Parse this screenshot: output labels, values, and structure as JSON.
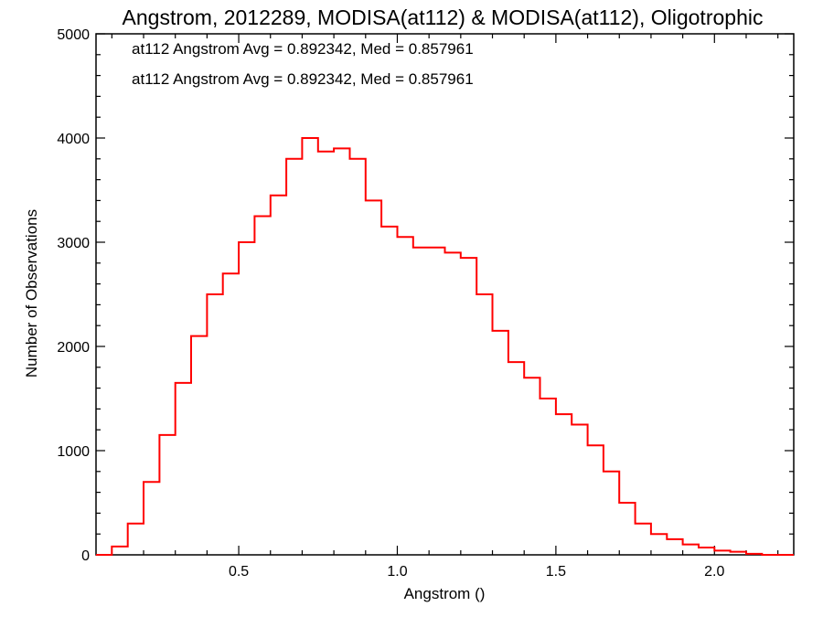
{
  "chart_data": {
    "type": "step",
    "title": "Angstrom, 2012289, MODISA(at112) & MODISA(at112), Oligotrophic",
    "xlabel": "Angstrom ()",
    "ylabel": "Number of Observations",
    "xlim": [
      0.05,
      2.25
    ],
    "ylim": [
      0,
      5000
    ],
    "x_ticks": [
      0.5,
      1.0,
      1.5,
      2.0
    ],
    "x_tick_labels": [
      "0.5",
      "1.0",
      "1.5",
      "2.0"
    ],
    "y_ticks": [
      0,
      1000,
      2000,
      3000,
      4000,
      5000
    ],
    "y_tick_labels": [
      "0",
      "1000",
      "2000",
      "3000",
      "4000",
      "5000"
    ],
    "annotations": [
      {
        "text": "at112 Angstrom Avg = 0.892342, Med = 0.857961",
        "color": "#000000"
      },
      {
        "text": "at112 Angstrom Avg = 0.892342, Med = 0.857961",
        "color": "#ff0000"
      }
    ],
    "series": [
      {
        "color": "#ff0000",
        "x": [
          0.05,
          0.1,
          0.15,
          0.2,
          0.25,
          0.3,
          0.35,
          0.4,
          0.45,
          0.5,
          0.55,
          0.6,
          0.65,
          0.7,
          0.75,
          0.8,
          0.85,
          0.9,
          0.95,
          1.0,
          1.05,
          1.1,
          1.15,
          1.2,
          1.25,
          1.3,
          1.35,
          1.4,
          1.45,
          1.5,
          1.55,
          1.6,
          1.65,
          1.7,
          1.75,
          1.8,
          1.85,
          1.9,
          1.95,
          2.0,
          2.05,
          2.1,
          2.15,
          2.2,
          2.25
        ],
        "y": [
          0,
          80,
          300,
          700,
          1150,
          1650,
          2100,
          2500,
          2700,
          3000,
          3250,
          3450,
          3800,
          4000,
          3870,
          3900,
          3800,
          3400,
          3150,
          3050,
          2950,
          2950,
          2900,
          2850,
          2500,
          2150,
          1850,
          1700,
          1500,
          1350,
          1250,
          1050,
          800,
          500,
          300,
          200,
          150,
          100,
          70,
          40,
          30,
          10,
          0,
          0,
          0
        ]
      }
    ]
  }
}
